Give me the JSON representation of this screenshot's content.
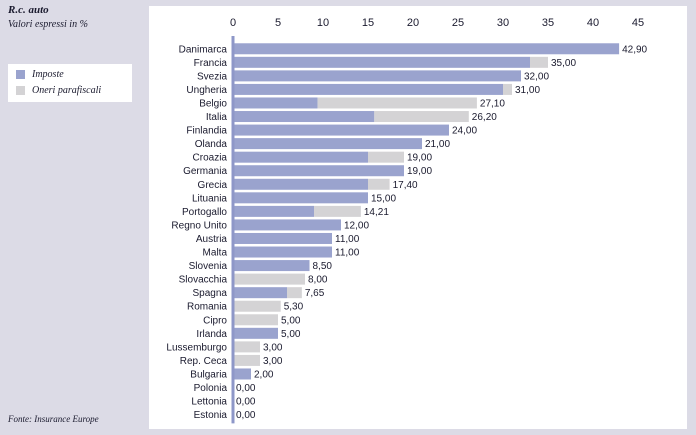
{
  "title": "R.c. auto",
  "subtitle": "Valori espressi in %",
  "source": "Fonte: Insurance Europe",
  "colors": {
    "imposte": "#9aa3ce",
    "oneri": "#d4d3d5",
    "axis": "#8e97c8"
  },
  "legend": {
    "imposte": "Imposte",
    "oneri": "Oneri parafiscali"
  },
  "chart_data": {
    "type": "bar",
    "orientation": "horizontal",
    "stacked": true,
    "xlim": [
      0,
      45
    ],
    "xticks": [
      0,
      5,
      10,
      15,
      20,
      25,
      30,
      35,
      40,
      45
    ],
    "categories": [
      "Danimarca",
      "Francia",
      "Svezia",
      "Ungheria",
      "Belgio",
      "Italia",
      "Finlandia",
      "Olanda",
      "Croazia",
      "Germania",
      "Grecia",
      "Lituania",
      "Portogallo",
      "Regno Unito",
      "Austria",
      "Malta",
      "Slovenia",
      "Slovacchia",
      "Spagna",
      "Romania",
      "Cipro",
      "Irlanda",
      "Lussemburgo",
      "Rep. Ceca",
      "Bulgaria",
      "Polonia",
      "Lettonia",
      "Estonia"
    ],
    "series": [
      {
        "name": "Imposte",
        "values": [
          42.9,
          33.0,
          32.0,
          30.0,
          9.4,
          15.7,
          24.0,
          21.0,
          15.0,
          19.0,
          15.0,
          15.0,
          9.0,
          12.0,
          11.0,
          11.0,
          8.5,
          0,
          6.0,
          0,
          0,
          5.0,
          0,
          0,
          2.0,
          0,
          0,
          0
        ]
      },
      {
        "name": "Oneri parafiscali",
        "values": [
          0,
          2.0,
          0,
          1.0,
          17.7,
          10.5,
          0,
          0,
          4.0,
          0,
          2.4,
          0,
          5.21,
          0,
          0,
          0,
          0,
          8.0,
          1.65,
          5.3,
          5.0,
          0,
          3.0,
          3.0,
          0,
          0,
          0,
          0
        ]
      }
    ],
    "totals_labels": [
      "42,90",
      "35,00",
      "32,00",
      "31,00",
      "27,10",
      "26,20",
      "24,00",
      "21,00",
      "19,00",
      "19,00",
      "17,40",
      "15,00",
      "14,21",
      "12,00",
      "11,00",
      "11,00",
      "8,50",
      "8,00",
      "7,65",
      "5,30",
      "5,00",
      "5,00",
      "3,00",
      "3,00",
      "2,00",
      "0,00",
      "0,00",
      "0,00"
    ]
  }
}
